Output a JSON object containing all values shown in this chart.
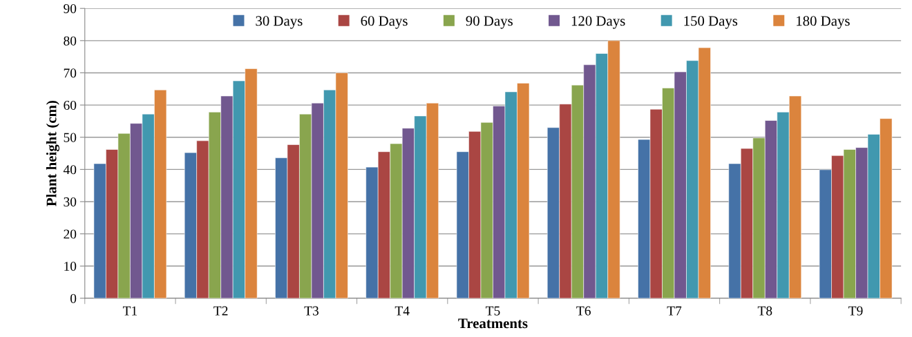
{
  "chart_data": {
    "type": "bar",
    "xlabel": "Treatments",
    "ylabel": "Plant height (cm)",
    "categories": [
      "T1",
      "T2",
      "T3",
      "T4",
      "T5",
      "T6",
      "T7",
      "T8",
      "T9"
    ],
    "series": [
      {
        "name": "30 Days",
        "color": "#4572a7",
        "values": [
          41.8,
          45.2,
          43.6,
          40.7,
          45.5,
          53.0,
          49.3,
          41.8,
          39.9
        ]
      },
      {
        "name": "60 Days",
        "color": "#aa4643",
        "values": [
          46.2,
          48.9,
          47.7,
          45.5,
          51.8,
          60.3,
          58.7,
          46.5,
          44.3
        ]
      },
      {
        "name": "90 Days",
        "color": "#89a54e",
        "values": [
          51.2,
          57.8,
          57.2,
          48.0,
          54.6,
          66.2,
          65.3,
          49.8,
          46.2
        ]
      },
      {
        "name": "120 Days",
        "color": "#71588f",
        "values": [
          54.3,
          62.8,
          60.6,
          52.8,
          59.7,
          72.5,
          70.3,
          55.2,
          46.8
        ]
      },
      {
        "name": "150 Days",
        "color": "#4198af",
        "values": [
          57.2,
          67.5,
          64.7,
          56.6,
          64.1,
          76.0,
          73.8,
          57.8,
          50.9
        ]
      },
      {
        "name": "180 Days",
        "color": "#db843d",
        "values": [
          64.7,
          71.3,
          70.0,
          60.6,
          66.8,
          80.0,
          77.8,
          62.8,
          55.8
        ]
      }
    ],
    "ylim": [
      0,
      90
    ],
    "yticks": [
      0,
      10,
      20,
      30,
      40,
      50,
      60,
      70,
      80,
      90
    ],
    "grid": "y",
    "legend": "top"
  }
}
